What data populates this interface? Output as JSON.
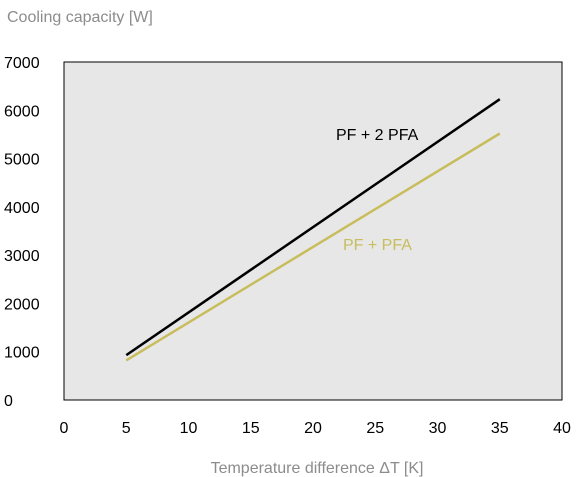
{
  "chart_data": {
    "type": "line",
    "title": "",
    "ylabel": "Cooling capacity [W]",
    "xlabel": "Temperature difference ΔT [K]",
    "xlim": [
      0,
      40
    ],
    "ylim": [
      0,
      7000
    ],
    "xticks": [
      0,
      5,
      10,
      15,
      20,
      25,
      30,
      35,
      40
    ],
    "yticks": [
      0,
      1000,
      2000,
      3000,
      4000,
      5000,
      6000,
      7000
    ],
    "grid": true,
    "legend": "inline labels",
    "series": [
      {
        "name": "PF + 2 PFA",
        "color": "#000000",
        "x": [
          5,
          35
        ],
        "y": [
          930,
          6230
        ]
      },
      {
        "name": "PF + PFA",
        "color": "#c8bd5c",
        "x": [
          5,
          35
        ],
        "y": [
          820,
          5520
        ]
      }
    ]
  }
}
